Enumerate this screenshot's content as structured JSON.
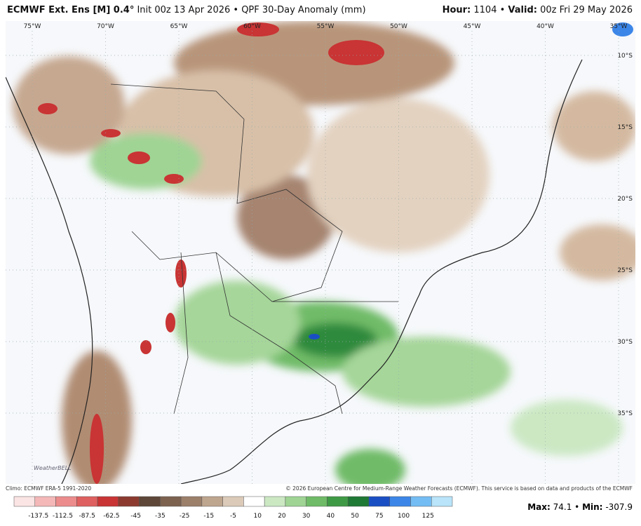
{
  "header": {
    "model": "ECMWF Ext. Ens [M] 0.4°",
    "init": "Init 00z 13 Apr 2026",
    "product": "QPF 30-Day Anomaly (mm)",
    "hour_label": "Hour:",
    "hour": "1104",
    "valid_label": "Valid:",
    "valid": "00z Fri 29 May 2026"
  },
  "map": {
    "lon_labels": [
      "75°W",
      "70°W",
      "65°W",
      "60°W",
      "55°W",
      "50°W",
      "45°W",
      "40°W",
      "35°W"
    ],
    "lat_labels": [
      "10°S",
      "15°S",
      "20°S",
      "25°S",
      "30°S",
      "35°S"
    ],
    "logo": "WeatherBELL"
  },
  "footer": {
    "climo": "Climo: ECMWF ERA-5 1991-2020",
    "copyright": "© 2026 European Centre for Medium-Range Weather Forecasts (ECMWF). This service is based on data and products of the ECMWF"
  },
  "colorbar": {
    "labels": [
      -137.5,
      -112.5,
      -87.5,
      -62.5,
      -45,
      -35,
      -25,
      -15,
      -5,
      10,
      20,
      30,
      40,
      50,
      75,
      100,
      125
    ],
    "colors": [
      "#fbe4e4",
      "#f4b8b8",
      "#ec8c8c",
      "#df6060",
      "#c93434",
      "#8c3a30",
      "#5e4638",
      "#7d6250",
      "#9c806a",
      "#bea58e",
      "#dccab8",
      "#ffffff",
      "#cbe8c3",
      "#9fd494",
      "#6fbb67",
      "#3f9a45",
      "#1f7a35",
      "#1a4fc4",
      "#3c86e8",
      "#74bdf4",
      "#b9e4f9"
    ]
  },
  "stats": {
    "max_label": "Max:",
    "max": 74.1,
    "min_label": "Min:",
    "min": -307.9
  }
}
